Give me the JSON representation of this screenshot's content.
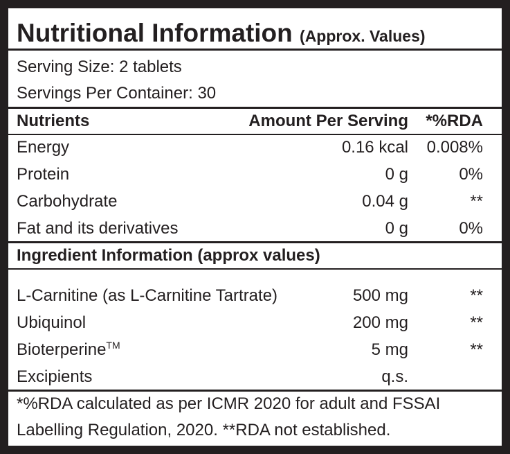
{
  "title": "Nutritional Information",
  "subtitle": "(Approx. Values)",
  "serving": [
    "Serving Size: 2 tablets",
    "Servings Per Container: 30"
  ],
  "nutrients": {
    "header": [
      "Nutrients",
      "Amount Per Serving",
      "*%RDA"
    ],
    "rows": [
      [
        "Energy",
        "0.16 kcal",
        "0.008%"
      ],
      [
        "Protein",
        "0 g",
        "0%"
      ],
      [
        "Carbohydrate",
        "0.04 g",
        "**"
      ],
      [
        "Fat and its derivatives",
        "0 g",
        "0%"
      ]
    ]
  },
  "ingredients": {
    "title": "Ingredient Information (approx values)",
    "rows": [
      {
        "name": "L-Carnitine (as L-Carnitine Tartrate)",
        "amount": "500 mg",
        "rda": "**"
      },
      {
        "name": "Ubiquinol",
        "amount": "200 mg",
        "rda": "**"
      },
      {
        "name": "Bioterperine",
        "name_sup": "TM",
        "amount": "5 mg",
        "rda": "**"
      },
      {
        "name": "Excipients",
        "amount": "q.s."
      }
    ]
  },
  "footnote": [
    "*%RDA calculated as per ICMR 2020 for adult and FSSAI",
    "Labelling Regulation, 2020. **RDA not established."
  ]
}
